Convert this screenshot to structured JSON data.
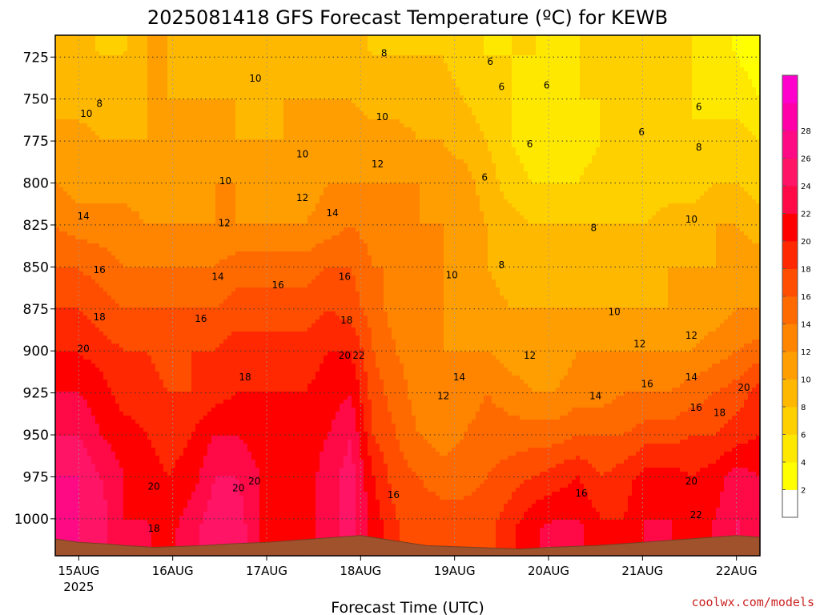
{
  "title": "2025081418 GFS Forecast Temperature (ºC) for KEWB",
  "credit": "coolwx.com/models",
  "chart_data": {
    "type": "heatmap",
    "title": "2025081418 GFS Forecast Temperature (ºC) for KEWB",
    "xlabel": "Forecast Time (UTC)",
    "ylabel": "",
    "y_axis": {
      "reversed": true,
      "ticks": [
        725,
        750,
        775,
        800,
        825,
        850,
        875,
        900,
        925,
        950,
        975,
        1000
      ],
      "range": [
        712,
        1022
      ]
    },
    "x_axis": {
      "ticks": [
        {
          "label": "15AUG",
          "sublabel": "2025",
          "day": 1.0
        },
        {
          "label": "16AUG",
          "day": 2.0
        },
        {
          "label": "17AUG",
          "day": 3.0
        },
        {
          "label": "18AUG",
          "day": 4.0
        },
        {
          "label": "19AUG",
          "day": 5.0
        },
        {
          "label": "20AUG",
          "day": 6.0
        },
        {
          "label": "21AUG",
          "day": 7.0
        },
        {
          "label": "22AUG",
          "day": 8.0
        }
      ],
      "range": [
        0.75,
        8.25
      ]
    },
    "grid": true,
    "colorbar": {
      "levels": [
        0,
        2,
        4,
        6,
        8,
        10,
        12,
        14,
        16,
        18,
        20,
        22,
        24,
        26,
        28,
        30
      ],
      "tick_labels": [
        "2",
        "4",
        "6",
        "8",
        "10",
        "12",
        "14",
        "16",
        "18",
        "20",
        "22",
        "24",
        "26",
        "28"
      ],
      "colors": [
        "#ffffff",
        "#ffff00",
        "#ffe800",
        "#ffd000",
        "#ffb800",
        "#ff9e00",
        "#ff8400",
        "#ff6a00",
        "#ff4e00",
        "#ff2800",
        "#ff0000",
        "#ff0a46",
        "#ff1466",
        "#ff0a85",
        "#ff00a8",
        "#ff00cc"
      ]
    },
    "series": [
      {
        "pressure": 725,
        "values": [
          9,
          9,
          8,
          8,
          10,
          10,
          9,
          9,
          9,
          9,
          10,
          9,
          9,
          9,
          8,
          8,
          8,
          8,
          7,
          6,
          6,
          6,
          5,
          6,
          6,
          6,
          6,
          6,
          6,
          5,
          4,
          3
        ]
      },
      {
        "pressure": 750,
        "values": [
          9,
          9,
          9,
          9,
          10,
          10,
          10,
          10,
          10,
          9,
          10,
          10,
          10,
          10,
          9,
          9,
          9,
          9,
          8,
          7,
          6,
          5,
          5,
          6,
          6,
          6,
          6,
          6,
          6,
          5,
          5,
          4
        ]
      },
      {
        "pressure": 775,
        "values": [
          11,
          11,
          10,
          10,
          10,
          10,
          11,
          11,
          10,
          10,
          10,
          10,
          11,
          11,
          11,
          11,
          10,
          10,
          9,
          8,
          6,
          5,
          5,
          5,
          6,
          6,
          6,
          6,
          6,
          7,
          7,
          6
        ]
      },
      {
        "pressure": 800,
        "values": [
          12,
          11,
          11,
          11,
          11,
          11,
          11,
          12,
          12,
          11,
          11,
          11,
          12,
          12,
          12,
          12,
          12,
          11,
          11,
          9,
          7,
          6,
          6,
          6,
          7,
          7,
          7,
          7,
          7,
          8,
          8,
          7
        ]
      },
      {
        "pressure": 825,
        "values": [
          14,
          13,
          13,
          13,
          12,
          12,
          12,
          12,
          12,
          12,
          12,
          12,
          13,
          14,
          13,
          13,
          12,
          12,
          11,
          10,
          9,
          8,
          8,
          8,
          8,
          8,
          8,
          9,
          9,
          10,
          10,
          9
        ]
      },
      {
        "pressure": 850,
        "values": [
          16,
          16,
          15,
          14,
          14,
          14,
          14,
          14,
          15,
          15,
          15,
          15,
          16,
          16,
          14,
          14,
          12,
          12,
          11,
          10,
          9,
          9,
          9,
          9,
          9,
          9,
          9,
          10,
          10,
          10,
          11,
          11
        ]
      },
      {
        "pressure": 875,
        "values": [
          18,
          18,
          17,
          16,
          16,
          16,
          16,
          16,
          17,
          17,
          17,
          17,
          18,
          17,
          15,
          13,
          12,
          12,
          11,
          11,
          10,
          10,
          10,
          10,
          10,
          10,
          10,
          10,
          11,
          11,
          12,
          12
        ]
      },
      {
        "pressure": 900,
        "values": [
          20,
          20,
          19,
          18,
          18,
          17,
          18,
          18,
          19,
          19,
          19,
          19,
          20,
          20,
          16,
          14,
          13,
          12,
          12,
          12,
          11,
          11,
          11,
          12,
          12,
          12,
          12,
          12,
          12,
          13,
          14,
          15
        ]
      },
      {
        "pressure": 925,
        "values": [
          22,
          22,
          21,
          19,
          19,
          18,
          18,
          19,
          20,
          20,
          20,
          20,
          21,
          22,
          17,
          15,
          13,
          12,
          13,
          14,
          13,
          12,
          12,
          13,
          13,
          14,
          14,
          14,
          15,
          16,
          17,
          19
        ]
      },
      {
        "pressure": 950,
        "values": [
          24,
          24,
          22,
          21,
          20,
          19,
          20,
          22,
          22,
          21,
          21,
          21,
          22,
          24,
          18,
          16,
          14,
          13,
          14,
          15,
          15,
          15,
          15,
          16,
          16,
          16,
          17,
          17,
          18,
          18,
          19,
          20
        ]
      },
      {
        "pressure": 975,
        "values": [
          26,
          26,
          24,
          22,
          21,
          20,
          21,
          24,
          24,
          22,
          21,
          21,
          23,
          25,
          20,
          17,
          16,
          15,
          15,
          16,
          17,
          18,
          19,
          20,
          18,
          19,
          21,
          21,
          20,
          21,
          23,
          22
        ]
      },
      {
        "pressure": 1000,
        "values": [
          26,
          26,
          25,
          22,
          22,
          21,
          23,
          25,
          25,
          22,
          21,
          21,
          23,
          25,
          21,
          18,
          17,
          17,
          17,
          17,
          19,
          21,
          22,
          22,
          20,
          20,
          22,
          22,
          21,
          22,
          24,
          22
        ]
      }
    ],
    "contour_labels": [
      {
        "text": "10",
        "day": 1.08,
        "p": 759
      },
      {
        "text": "8",
        "day": 1.22,
        "p": 753
      },
      {
        "text": "10",
        "day": 2.88,
        "p": 738
      },
      {
        "text": "8",
        "day": 4.25,
        "p": 723
      },
      {
        "text": "6",
        "day": 5.38,
        "p": 728
      },
      {
        "text": "6",
        "day": 5.5,
        "p": 743
      },
      {
        "text": "6",
        "day": 5.98,
        "p": 742
      },
      {
        "text": "10",
        "day": 4.23,
        "p": 761
      },
      {
        "text": "12",
        "day": 4.18,
        "p": 789
      },
      {
        "text": "10",
        "day": 3.38,
        "p": 783
      },
      {
        "text": "10",
        "day": 2.56,
        "p": 799
      },
      {
        "text": "12",
        "day": 3.38,
        "p": 809
      },
      {
        "text": "6",
        "day": 5.32,
        "p": 797
      },
      {
        "text": "6",
        "day": 5.8,
        "p": 777
      },
      {
        "text": "6",
        "day": 6.99,
        "p": 770
      },
      {
        "text": "6",
        "day": 7.6,
        "p": 755
      },
      {
        "text": "8",
        "day": 7.6,
        "p": 779
      },
      {
        "text": "8",
        "day": 6.48,
        "p": 827
      },
      {
        "text": "10",
        "day": 7.52,
        "p": 822
      },
      {
        "text": "14",
        "day": 1.05,
        "p": 820
      },
      {
        "text": "12",
        "day": 2.55,
        "p": 824
      },
      {
        "text": "14",
        "day": 3.7,
        "p": 818
      },
      {
        "text": "16",
        "day": 1.22,
        "p": 852
      },
      {
        "text": "14",
        "day": 2.48,
        "p": 856
      },
      {
        "text": "16",
        "day": 3.12,
        "p": 861
      },
      {
        "text": "16",
        "day": 3.83,
        "p": 856
      },
      {
        "text": "8",
        "day": 5.5,
        "p": 849
      },
      {
        "text": "10",
        "day": 4.97,
        "p": 855
      },
      {
        "text": "10",
        "day": 6.7,
        "p": 877
      },
      {
        "text": "18",
        "day": 1.22,
        "p": 880
      },
      {
        "text": "16",
        "day": 2.3,
        "p": 881
      },
      {
        "text": "18",
        "day": 3.85,
        "p": 882
      },
      {
        "text": "20",
        "day": 1.05,
        "p": 899
      },
      {
        "text": "20",
        "day": 3.83,
        "p": 903
      },
      {
        "text": "22",
        "day": 3.98,
        "p": 903
      },
      {
        "text": "12",
        "day": 5.8,
        "p": 903
      },
      {
        "text": "12",
        "day": 6.97,
        "p": 896
      },
      {
        "text": "12",
        "day": 7.52,
        "p": 891
      },
      {
        "text": "18",
        "day": 2.77,
        "p": 916
      },
      {
        "text": "14",
        "day": 5.05,
        "p": 916
      },
      {
        "text": "12",
        "day": 4.88,
        "p": 927
      },
      {
        "text": "14",
        "day": 6.5,
        "p": 927
      },
      {
        "text": "16",
        "day": 7.05,
        "p": 920
      },
      {
        "text": "14",
        "day": 7.52,
        "p": 916
      },
      {
        "text": "20",
        "day": 8.08,
        "p": 922
      },
      {
        "text": "16",
        "day": 7.57,
        "p": 934
      },
      {
        "text": "18",
        "day": 7.82,
        "p": 937
      },
      {
        "text": "20",
        "day": 1.8,
        "p": 981
      },
      {
        "text": "20",
        "day": 2.7,
        "p": 982
      },
      {
        "text": "20",
        "day": 2.87,
        "p": 978
      },
      {
        "text": "16",
        "day": 4.35,
        "p": 986
      },
      {
        "text": "16",
        "day": 6.35,
        "p": 985
      },
      {
        "text": "20",
        "day": 7.52,
        "p": 978
      },
      {
        "text": "22",
        "day": 7.57,
        "p": 998
      },
      {
        "text": "18",
        "day": 1.8,
        "p": 1006
      }
    ]
  }
}
